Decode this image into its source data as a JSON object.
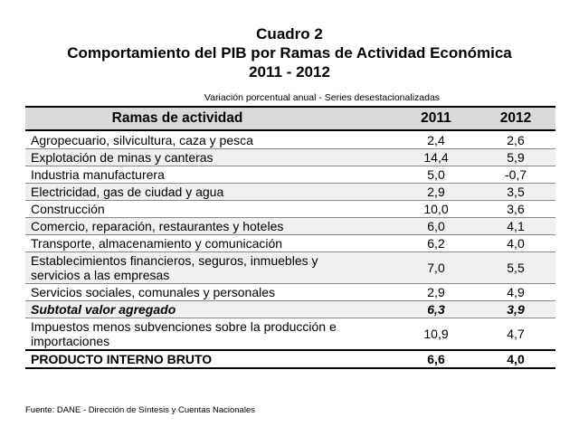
{
  "title": {
    "line1": "Cuadro 2",
    "line2": "Comportamiento del PIB por Ramas de Actividad Económica",
    "line3": "2011 - 2012"
  },
  "subtitle": "Variación porcentual anual - Series desestacionalizadas",
  "table": {
    "headers": [
      "Ramas de actividad",
      "2011",
      "2012"
    ],
    "rows": [
      {
        "label": "Agropecuario, silvicultura, caza y pesca",
        "v2011": "2,4",
        "v2012": "2,6"
      },
      {
        "label": "Explotación de minas y canteras",
        "v2011": "14,4",
        "v2012": "5,9"
      },
      {
        "label": "Industria manufacturera",
        "v2011": "5,0",
        "v2012": "-0,7"
      },
      {
        "label": "Electricidad, gas de ciudad y agua",
        "v2011": "2,9",
        "v2012": "3,5"
      },
      {
        "label": "Construcción",
        "v2011": "10,0",
        "v2012": "3,6"
      },
      {
        "label": "Comercio, reparación, restaurantes y hoteles",
        "v2011": "6,0",
        "v2012": "4,1"
      },
      {
        "label": "Transporte, almacenamiento y comunicación",
        "v2011": "6,2",
        "v2012": "4,0"
      },
      {
        "label": "Establecimientos financieros, seguros, inmuebles y servicios a las empresas",
        "v2011": "7,0",
        "v2012": "5,5"
      },
      {
        "label": "Servicios sociales, comunales y personales",
        "v2011": "2,9",
        "v2012": "4,9"
      },
      {
        "label": "Subtotal valor agregado",
        "v2011": "6,3",
        "v2012": "3,9"
      },
      {
        "label": "Impuestos menos subvenciones sobre la producción e importaciones",
        "v2011": "10,9",
        "v2012": "4,7"
      },
      {
        "label": "PRODUCTO INTERNO BRUTO",
        "v2011": "6,6",
        "v2012": "4,0"
      }
    ]
  },
  "source": "Fuente: DANE - Dirección de Síntesis y Cuentas Nacionales"
}
